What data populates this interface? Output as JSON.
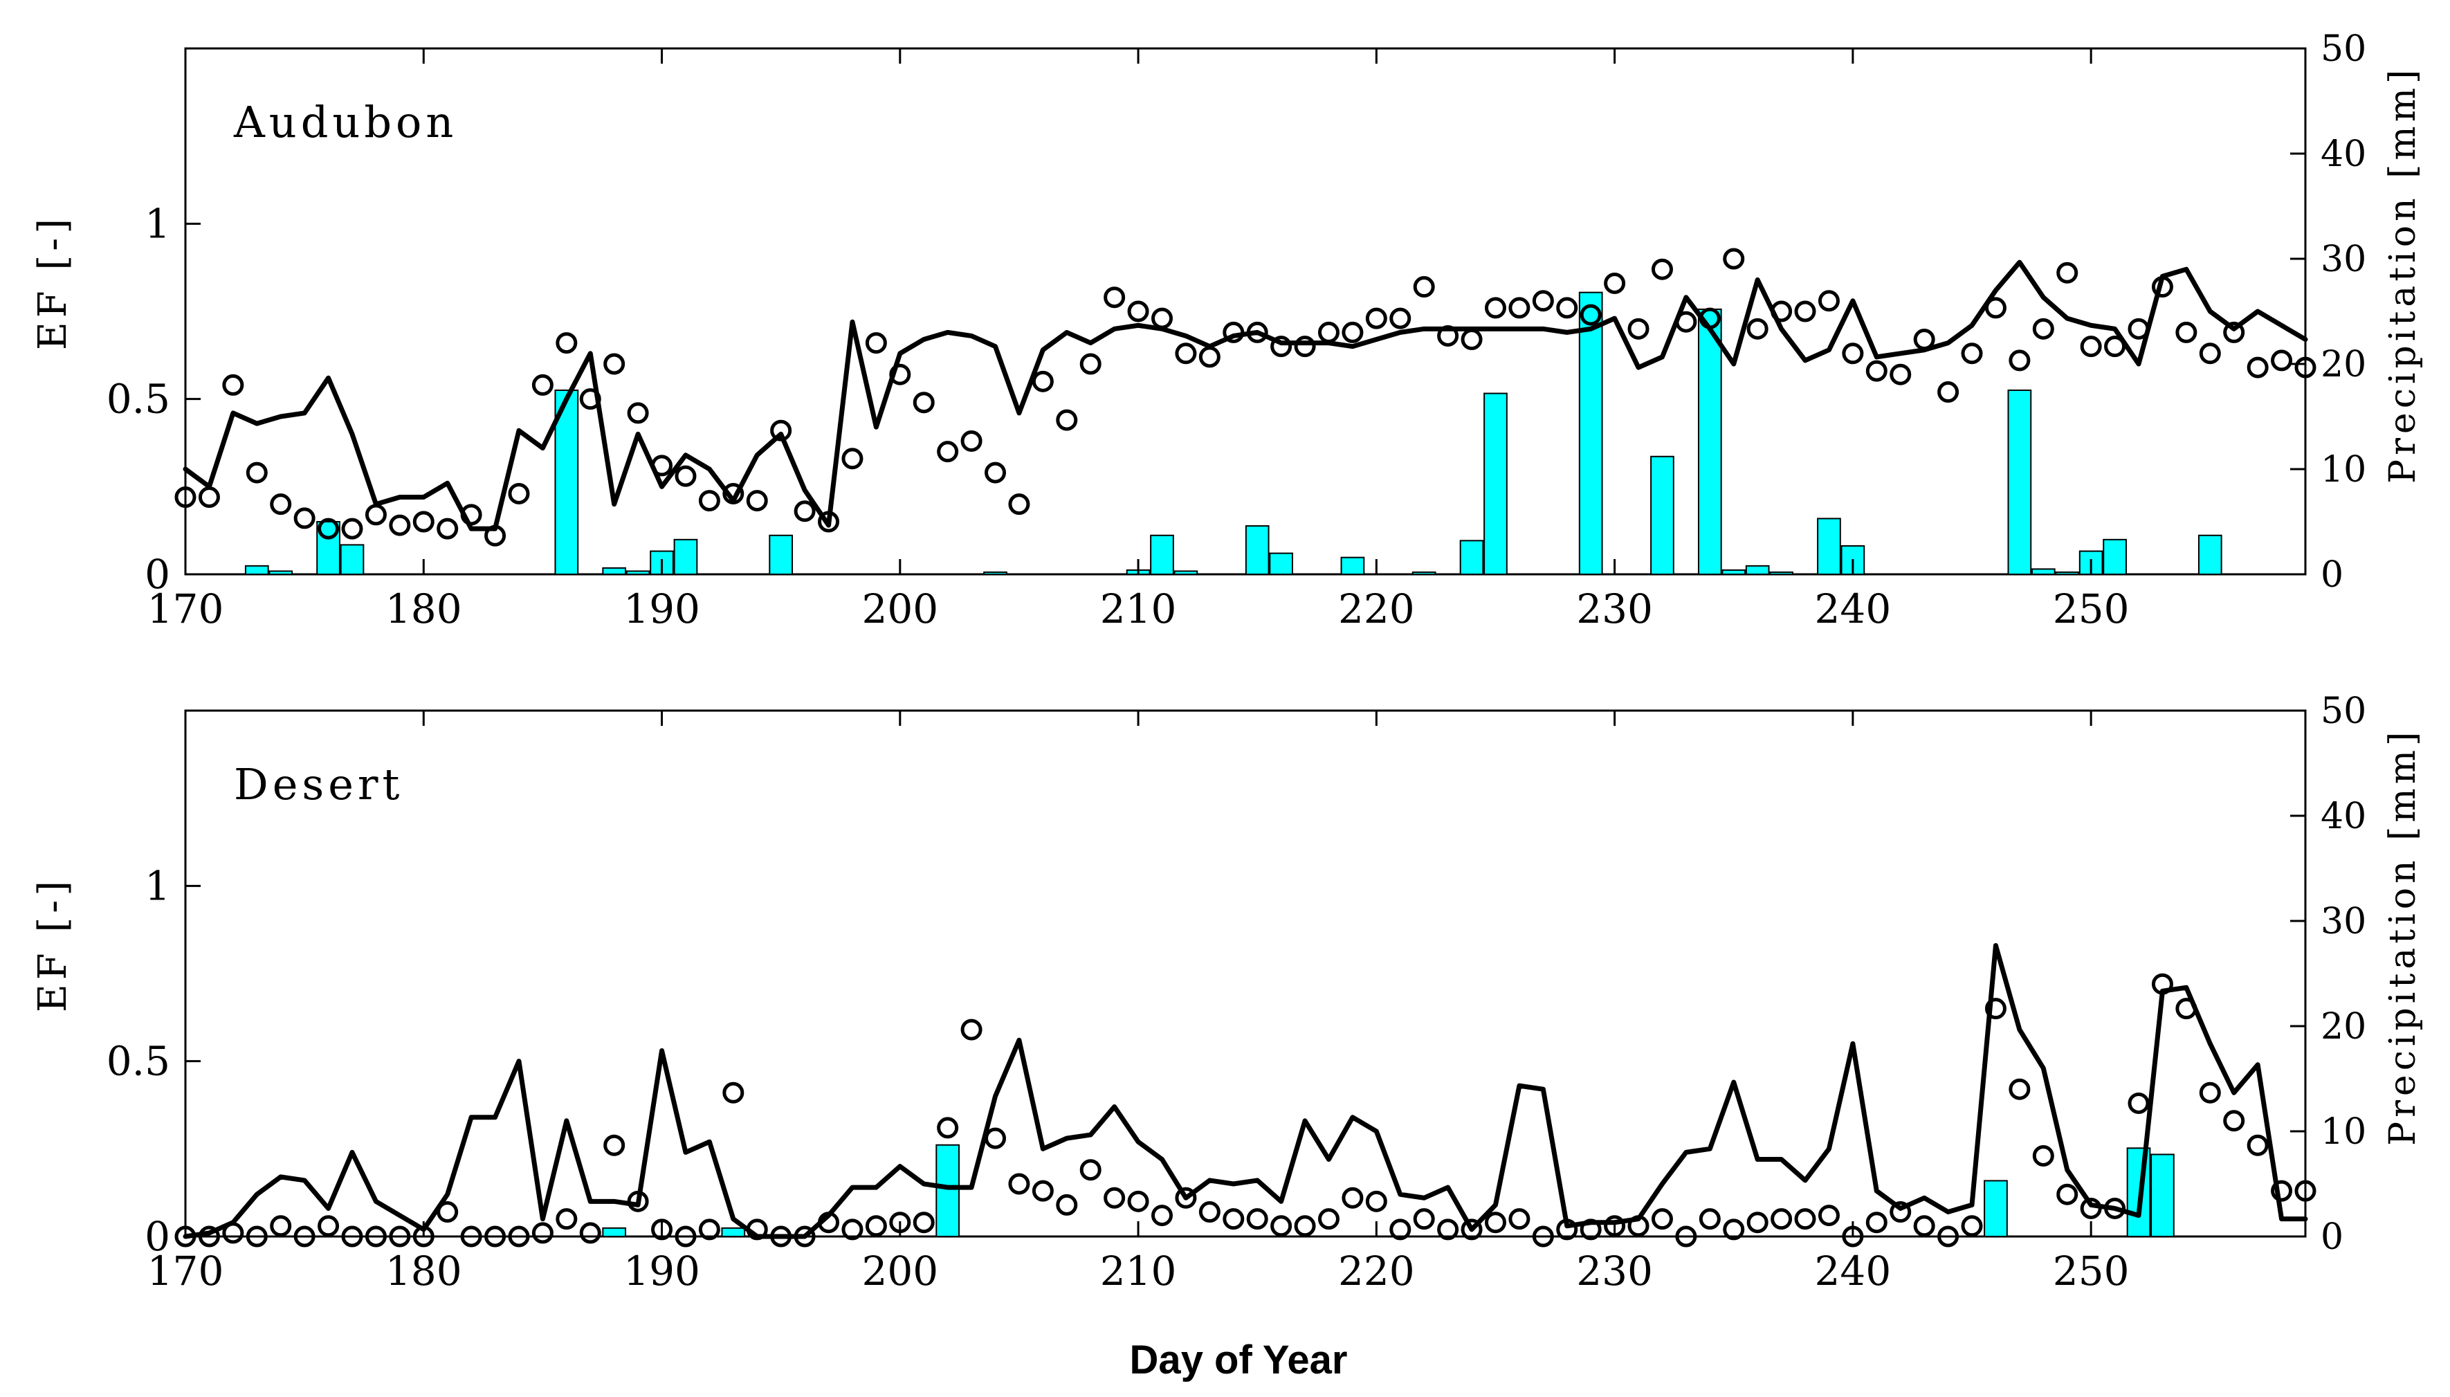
{
  "colors": {
    "bar_fill": "#00ffff",
    "bar_stroke": "#000000",
    "line": "#000000",
    "marker": "#000000",
    "axis": "#000000"
  },
  "xlabel": "Day of Year",
  "chart_data": [
    {
      "type": "bar+line+scatter",
      "title": "Audubon",
      "ylabel_left": "EF [-]",
      "ylabel_right": "Precipitation [mm]",
      "xlim": [
        170,
        259
      ],
      "ylim_left": [
        0,
        1.5
      ],
      "ylim_right": [
        0,
        50
      ],
      "x_ticks": [
        170,
        180,
        190,
        200,
        210,
        220,
        230,
        240,
        250
      ],
      "yticks_left": [
        0,
        0.5,
        1
      ],
      "yticks_left_labels": [
        "0",
        "0.5",
        "1"
      ],
      "yticks_right": [
        0,
        10,
        20,
        30,
        40,
        50
      ],
      "yticks_right_labels": [
        "0",
        "10",
        "20",
        "30",
        "40",
        "50"
      ],
      "series": [
        {
          "name": "EF modeled (line)",
          "x": [
            170,
            171,
            172,
            173,
            174,
            175,
            176,
            177,
            178,
            179,
            180,
            181,
            182,
            183,
            184,
            185,
            186,
            187,
            188,
            189,
            190,
            191,
            192,
            193,
            194,
            195,
            196,
            197,
            198,
            199,
            200,
            201,
            202,
            203,
            204,
            205,
            206,
            207,
            208,
            209,
            210,
            211,
            212,
            213,
            214,
            215,
            216,
            217,
            218,
            219,
            220,
            221,
            222,
            223,
            224,
            225,
            226,
            227,
            228,
            229,
            230,
            231,
            232,
            233,
            234,
            235,
            236,
            237,
            238,
            239,
            240,
            241,
            242,
            243,
            244,
            245,
            246,
            247,
            248,
            249,
            250,
            251,
            252,
            253,
            254,
            255,
            256,
            257,
            258,
            259
          ],
          "values": [
            0.3,
            0.25,
            0.46,
            0.43,
            0.45,
            0.46,
            0.56,
            0.4,
            0.2,
            0.22,
            0.22,
            0.26,
            0.13,
            0.13,
            0.41,
            0.36,
            0.5,
            0.63,
            0.2,
            0.4,
            0.25,
            0.34,
            0.3,
            0.21,
            0.34,
            0.4,
            0.24,
            0.14,
            0.72,
            0.42,
            0.63,
            0.67,
            0.69,
            0.68,
            0.65,
            0.46,
            0.64,
            0.69,
            0.66,
            0.7,
            0.71,
            0.7,
            0.68,
            0.65,
            0.68,
            0.69,
            0.66,
            0.66,
            0.66,
            0.65,
            0.67,
            0.69,
            0.7,
            0.7,
            0.7,
            0.7,
            0.7,
            0.7,
            0.69,
            0.7,
            0.73,
            0.59,
            0.62,
            0.79,
            0.7,
            0.6,
            0.84,
            0.7,
            0.61,
            0.64,
            0.78,
            0.62,
            0.63,
            0.64,
            0.66,
            0.71,
            0.81,
            0.89,
            0.79,
            0.73,
            0.71,
            0.7,
            0.6,
            0.85,
            0.87,
            0.75,
            0.7,
            0.75,
            0.71,
            0.67
          ]
        },
        {
          "name": "EF observed (circles)",
          "x": [
            170,
            171,
            172,
            173,
            174,
            175,
            176,
            177,
            178,
            179,
            180,
            181,
            182,
            183,
            184,
            185,
            186,
            187,
            188,
            189,
            190,
            191,
            192,
            193,
            194,
            195,
            196,
            197,
            198,
            199,
            200,
            201,
            202,
            203,
            204,
            205,
            206,
            207,
            208,
            209,
            210,
            211,
            212,
            213,
            214,
            215,
            216,
            217,
            218,
            219,
            220,
            221,
            222,
            223,
            224,
            225,
            226,
            227,
            228,
            229,
            230,
            231,
            232,
            233,
            234,
            235,
            236,
            237,
            238,
            239,
            240,
            241,
            242,
            243,
            244,
            245,
            246,
            247,
            248,
            249,
            250,
            251,
            252,
            253,
            254,
            255,
            256,
            257,
            258,
            259
          ],
          "values": [
            0.22,
            0.22,
            0.54,
            0.29,
            0.2,
            0.16,
            0.13,
            0.13,
            0.17,
            0.14,
            0.15,
            0.13,
            0.17,
            0.11,
            0.23,
            0.54,
            0.66,
            0.5,
            0.6,
            0.46,
            0.31,
            0.28,
            0.21,
            0.23,
            0.21,
            0.41,
            0.18,
            0.15,
            0.33,
            0.66,
            0.57,
            0.49,
            0.35,
            0.38,
            0.29,
            0.2,
            0.55,
            0.44,
            0.6,
            0.79,
            0.75,
            0.73,
            0.63,
            0.62,
            0.69,
            0.69,
            0.65,
            0.65,
            0.69,
            0.69,
            0.73,
            0.73,
            0.82,
            0.68,
            0.67,
            0.76,
            0.76,
            0.78,
            0.76,
            0.74,
            0.83,
            0.7,
            0.87,
            0.72,
            0.73,
            0.9,
            0.7,
            0.75,
            0.75,
            0.78,
            0.63,
            0.58,
            0.57,
            0.67,
            0.52,
            0.63,
            0.76,
            0.61,
            0.7,
            0.86,
            0.65,
            0.65,
            0.7,
            0.82,
            0.69,
            0.63,
            0.69,
            0.59,
            0.61,
            0.59
          ]
        },
        {
          "name": "Precipitation (bars, right axis)",
          "x": [
            173,
            174,
            176,
            177,
            186,
            188,
            189,
            190,
            191,
            195,
            204,
            210,
            211,
            212,
            215,
            216,
            219,
            222,
            224,
            225,
            229,
            232,
            234,
            235,
            236,
            237,
            239,
            240,
            247,
            248,
            249,
            250,
            251,
            255
          ],
          "values": [
            0.8,
            0.3,
            5.0,
            2.8,
            17.5,
            0.6,
            0.3,
            2.2,
            3.3,
            3.7,
            0.2,
            0.4,
            3.7,
            0.3,
            4.6,
            2.0,
            1.6,
            0.2,
            3.2,
            17.2,
            26.8,
            11.2,
            25.2,
            0.4,
            0.8,
            0.2,
            5.3,
            2.7,
            17.5,
            0.5,
            0.2,
            2.2,
            3.3,
            3.7
          ]
        }
      ]
    },
    {
      "type": "bar+line+scatter",
      "title": "Desert",
      "ylabel_left": "EF [-]",
      "ylabel_right": "Precipitation [mm]",
      "xlim": [
        170,
        259
      ],
      "ylim_left": [
        0,
        1.5
      ],
      "ylim_right": [
        0,
        50
      ],
      "x_ticks": [
        170,
        180,
        190,
        200,
        210,
        220,
        230,
        240,
        250
      ],
      "yticks_left": [
        0,
        0.5,
        1
      ],
      "yticks_left_labels": [
        "0",
        "0.5",
        "1"
      ],
      "yticks_right": [
        0,
        10,
        20,
        30,
        40,
        50
      ],
      "yticks_right_labels": [
        "0",
        "10",
        "20",
        "30",
        "40",
        "50"
      ],
      "series": [
        {
          "name": "EF modeled (line)",
          "x": [
            170,
            171,
            172,
            173,
            174,
            175,
            176,
            177,
            178,
            179,
            180,
            181,
            182,
            183,
            184,
            185,
            186,
            187,
            188,
            189,
            190,
            191,
            192,
            193,
            194,
            195,
            196,
            197,
            198,
            199,
            200,
            201,
            202,
            203,
            204,
            205,
            206,
            207,
            208,
            209,
            210,
            211,
            212,
            213,
            214,
            215,
            216,
            217,
            218,
            219,
            220,
            221,
            222,
            223,
            224,
            225,
            226,
            227,
            228,
            229,
            230,
            231,
            232,
            233,
            234,
            235,
            236,
            237,
            238,
            239,
            240,
            241,
            242,
            243,
            244,
            245,
            246,
            247,
            248,
            249,
            250,
            251,
            252,
            253,
            254,
            255,
            256,
            257,
            258,
            259
          ],
          "values": [
            0.0,
            0.01,
            0.04,
            0.12,
            0.17,
            0.16,
            0.08,
            0.24,
            0.1,
            0.06,
            0.02,
            0.12,
            0.34,
            0.34,
            0.5,
            0.05,
            0.33,
            0.1,
            0.1,
            0.09,
            0.53,
            0.24,
            0.27,
            0.05,
            0.0,
            0.0,
            0.0,
            0.06,
            0.14,
            0.14,
            0.2,
            0.15,
            0.14,
            0.14,
            0.4,
            0.56,
            0.25,
            0.28,
            0.29,
            0.37,
            0.27,
            0.22,
            0.11,
            0.16,
            0.15,
            0.16,
            0.1,
            0.33,
            0.22,
            0.34,
            0.3,
            0.12,
            0.11,
            0.14,
            0.02,
            0.09,
            0.43,
            0.42,
            0.03,
            0.04,
            0.04,
            0.05,
            0.15,
            0.24,
            0.25,
            0.44,
            0.22,
            0.22,
            0.16,
            0.25,
            0.55,
            0.13,
            0.08,
            0.11,
            0.07,
            0.09,
            0.83,
            0.59,
            0.48,
            0.19,
            0.09,
            0.08,
            0.06,
            0.7,
            0.71,
            0.55,
            0.41,
            0.49,
            0.05,
            0.05
          ]
        },
        {
          "name": "EF observed (circles)",
          "x": [
            170,
            171,
            172,
            173,
            174,
            175,
            176,
            177,
            178,
            179,
            180,
            181,
            182,
            183,
            184,
            185,
            186,
            187,
            188,
            189,
            190,
            191,
            192,
            193,
            194,
            195,
            196,
            197,
            198,
            199,
            200,
            201,
            202,
            203,
            204,
            205,
            206,
            207,
            208,
            209,
            210,
            211,
            212,
            213,
            214,
            215,
            216,
            217,
            218,
            219,
            220,
            221,
            222,
            223,
            224,
            225,
            226,
            227,
            228,
            229,
            230,
            231,
            232,
            233,
            234,
            235,
            236,
            237,
            238,
            239,
            240,
            241,
            242,
            243,
            244,
            245,
            246,
            247,
            248,
            249,
            250,
            251,
            252,
            253,
            254,
            255,
            256,
            257,
            258,
            259
          ],
          "values": [
            0.0,
            0.0,
            0.01,
            0.0,
            0.03,
            0.0,
            0.03,
            0.0,
            0.0,
            0.0,
            0.0,
            0.07,
            0.0,
            0.0,
            0.0,
            0.01,
            0.05,
            0.01,
            0.26,
            0.1,
            0.02,
            0.0,
            0.02,
            0.41,
            0.02,
            0.0,
            0.0,
            0.04,
            0.02,
            0.03,
            0.04,
            0.04,
            0.31,
            0.59,
            0.28,
            0.15,
            0.13,
            0.09,
            0.19,
            0.11,
            0.1,
            0.06,
            0.11,
            0.07,
            0.05,
            0.05,
            0.03,
            0.03,
            0.05,
            0.11,
            0.1,
            0.02,
            0.05,
            0.02,
            0.02,
            0.04,
            0.05,
            0.0,
            0.02,
            0.02,
            0.03,
            0.03,
            0.05,
            0.0,
            0.05,
            0.02,
            0.04,
            0.05,
            0.05,
            0.06,
            0.0,
            0.04,
            0.07,
            0.03,
            0.0,
            0.03,
            0.65,
            0.42,
            0.23,
            0.12,
            0.08,
            0.08,
            0.38,
            0.72,
            0.65,
            0.41,
            0.33,
            0.26,
            0.13,
            0.13
          ]
        },
        {
          "name": "Precipitation (bars, right axis)",
          "x": [
            188,
            193,
            202,
            246,
            252,
            253
          ],
          "values": [
            0.8,
            0.8,
            8.7,
            5.3,
            8.4,
            7.8
          ]
        }
      ]
    }
  ]
}
